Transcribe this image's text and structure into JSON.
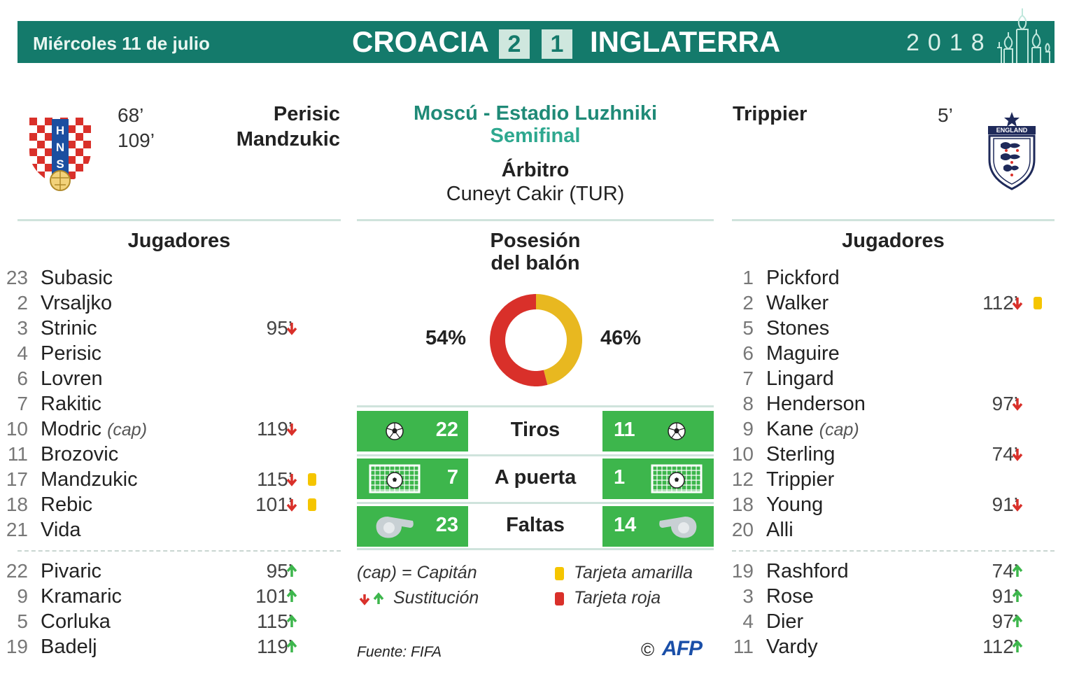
{
  "header": {
    "date": "Miércoles 11 de julio",
    "home_team": "CROACIA",
    "home_score": "2",
    "away_score": "1",
    "away_team": "INGLATERRA",
    "year": "2018"
  },
  "colors": {
    "header_bg": "#147a6b",
    "croatia": "#d9302a",
    "england": "#e8b820",
    "stat_green": "#3db64c",
    "yellow_card": "#f5c500",
    "red_card": "#d9302a",
    "arrow_down": "#d9302a",
    "arrow_up": "#3db64c"
  },
  "home_crest": {
    "icon": "croatia-hns-crest-icon",
    "text": "HNS"
  },
  "away_crest": {
    "icon": "england-crest-icon",
    "text": "ENGLAND"
  },
  "home_scorers": [
    {
      "minute": "68’",
      "name": "Perisic"
    },
    {
      "minute": "109’",
      "name": "Mandzukic"
    }
  ],
  "away_scorers": [
    {
      "name": "Trippier",
      "minute": "5’"
    }
  ],
  "match": {
    "venue": "Moscú - Estadio Luzhniki",
    "stage": "Semifinal",
    "referee_title": "Árbitro",
    "referee_name": "Cuneyt Cakir (TUR)"
  },
  "home_players_title": "Jugadores",
  "away_players_title": "Jugadores",
  "home_players": [
    {
      "num": "23",
      "name": "Subasic",
      "cap": "",
      "min": "",
      "arrow": "",
      "card": ""
    },
    {
      "num": "2",
      "name": "Vrsaljko",
      "cap": "",
      "min": "",
      "arrow": "",
      "card": ""
    },
    {
      "num": "3",
      "name": "Strinic",
      "cap": "",
      "min": "95’",
      "arrow": "down",
      "card": ""
    },
    {
      "num": "4",
      "name": "Perisic",
      "cap": "",
      "min": "",
      "arrow": "",
      "card": ""
    },
    {
      "num": "6",
      "name": "Lovren",
      "cap": "",
      "min": "",
      "arrow": "",
      "card": ""
    },
    {
      "num": "7",
      "name": "Rakitic",
      "cap": "",
      "min": "",
      "arrow": "",
      "card": ""
    },
    {
      "num": "10",
      "name": "Modric",
      "cap": "(cap)",
      "min": "119’",
      "arrow": "down",
      "card": ""
    },
    {
      "num": "11",
      "name": "Brozovic",
      "cap": "",
      "min": "",
      "arrow": "",
      "card": ""
    },
    {
      "num": "17",
      "name": "Mandzukic",
      "cap": "",
      "min": "115’",
      "arrow": "down",
      "card": "yellow"
    },
    {
      "num": "18",
      "name": "Rebic",
      "cap": "",
      "min": "101’",
      "arrow": "down",
      "card": "yellow"
    },
    {
      "num": "21",
      "name": "Vida",
      "cap": "",
      "min": "",
      "arrow": "",
      "card": ""
    }
  ],
  "home_subs": [
    {
      "num": "22",
      "name": "Pivaric",
      "min": "95’",
      "arrow": "up"
    },
    {
      "num": "9",
      "name": "Kramaric",
      "min": "101’",
      "arrow": "up"
    },
    {
      "num": "5",
      "name": "Corluka",
      "min": "115’",
      "arrow": "up"
    },
    {
      "num": "19",
      "name": "Badelj",
      "min": "119’",
      "arrow": "up"
    }
  ],
  "away_players": [
    {
      "num": "1",
      "name": "Pickford",
      "cap": "",
      "min": "",
      "arrow": "",
      "card": ""
    },
    {
      "num": "2",
      "name": "Walker",
      "cap": "",
      "min": "112’",
      "arrow": "down",
      "card": "yellow"
    },
    {
      "num": "5",
      "name": "Stones",
      "cap": "",
      "min": "",
      "arrow": "",
      "card": ""
    },
    {
      "num": "6",
      "name": "Maguire",
      "cap": "",
      "min": "",
      "arrow": "",
      "card": ""
    },
    {
      "num": "7",
      "name": "Lingard",
      "cap": "",
      "min": "",
      "arrow": "",
      "card": ""
    },
    {
      "num": "8",
      "name": "Henderson",
      "cap": "",
      "min": "97’",
      "arrow": "down",
      "card": ""
    },
    {
      "num": "9",
      "name": "Kane",
      "cap": "(cap)",
      "min": "",
      "arrow": "",
      "card": ""
    },
    {
      "num": "10",
      "name": "Sterling",
      "cap": "",
      "min": "74’",
      "arrow": "down",
      "card": ""
    },
    {
      "num": "12",
      "name": "Trippier",
      "cap": "",
      "min": "",
      "arrow": "",
      "card": ""
    },
    {
      "num": "18",
      "name": "Young",
      "cap": "",
      "min": "91’",
      "arrow": "down",
      "card": ""
    },
    {
      "num": "20",
      "name": "Alli",
      "cap": "",
      "min": "",
      "arrow": "",
      "card": ""
    }
  ],
  "away_subs": [
    {
      "num": "19",
      "name": "Rashford",
      "min": "74’",
      "arrow": "up"
    },
    {
      "num": "3",
      "name": "Rose",
      "min": "91’",
      "arrow": "up"
    },
    {
      "num": "4",
      "name": "Dier",
      "min": "97’",
      "arrow": "up"
    },
    {
      "num": "11",
      "name": "Vardy",
      "min": "112’",
      "arrow": "up"
    }
  ],
  "possession": {
    "title_line1": "Posesión",
    "title_line2": "del balón",
    "home_pct": "54%",
    "away_pct": "46%",
    "home_value": 54,
    "away_value": 46
  },
  "stats": [
    {
      "label": "Tiros",
      "home": "22",
      "away": "11",
      "icon": "soccer-ball-icon"
    },
    {
      "label": "A puerta",
      "home": "7",
      "away": "1",
      "icon": "goal-net-icon"
    },
    {
      "label": "Faltas",
      "home": "23",
      "away": "14",
      "icon": "whistle-icon"
    }
  ],
  "legend": {
    "captain": "(cap) = Capitán",
    "substitution": "Sustitución",
    "yellow": "Tarjeta amarilla",
    "red": "Tarjeta roja"
  },
  "source": "Fuente: FIFA",
  "credit": {
    "symbol": "©",
    "agency": "AFP"
  }
}
